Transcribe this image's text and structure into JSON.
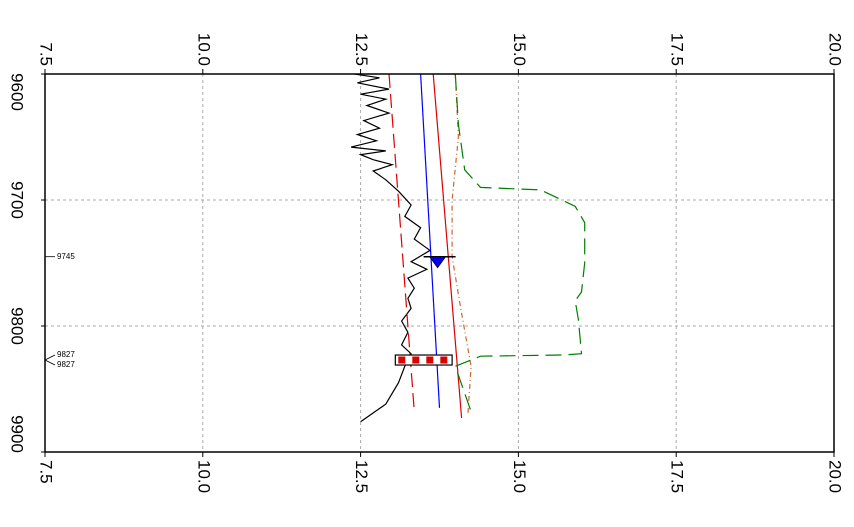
{
  "chart_data": {
    "type": "line",
    "x_axis": {
      "ticks": [
        "7.5",
        "10.0",
        "12.5",
        "15.0",
        "17.5",
        "20.0"
      ],
      "range": [
        7.5,
        20.0
      ]
    },
    "y_axis": {
      "ticks": [
        "9600",
        "9700",
        "9800",
        "9900"
      ],
      "range": [
        9600,
        9900
      ]
    },
    "grid": true,
    "annotations": [
      {
        "label": "9745",
        "depth": 9745
      },
      {
        "label": "9827",
        "depth": 9827
      },
      {
        "label": "9827",
        "depth": 9827
      }
    ],
    "markers": [
      {
        "type": "triangle",
        "x": 13.72,
        "depth": 9745,
        "color": "#0000ff"
      },
      {
        "type": "hatched-bar",
        "x_start": 13.05,
        "x_end": 13.95,
        "depth": 9827,
        "color": "#dd0000"
      }
    ],
    "series": [
      {
        "id": "log-curve",
        "color": "#000000",
        "dash": "",
        "points": [
          [
            12.4,
            9600
          ],
          [
            12.8,
            9603
          ],
          [
            12.45,
            9607
          ],
          [
            12.95,
            9612
          ],
          [
            12.5,
            9616
          ],
          [
            12.9,
            9620
          ],
          [
            12.6,
            9625
          ],
          [
            12.95,
            9631
          ],
          [
            12.55,
            9637
          ],
          [
            12.8,
            9643
          ],
          [
            12.45,
            9648
          ],
          [
            12.75,
            9653
          ],
          [
            12.35,
            9658
          ],
          [
            12.9,
            9661
          ],
          [
            12.5,
            9664
          ],
          [
            12.7,
            9668
          ],
          [
            13.0,
            9672
          ],
          [
            12.7,
            9677
          ],
          [
            12.9,
            9684
          ],
          [
            13.1,
            9693
          ],
          [
            13.3,
            9704
          ],
          [
            13.2,
            9713
          ],
          [
            13.45,
            9722
          ],
          [
            13.35,
            9731
          ],
          [
            13.6,
            9740
          ],
          [
            13.3,
            9749
          ],
          [
            13.55,
            9755
          ],
          [
            13.25,
            9762
          ],
          [
            13.35,
            9770
          ],
          [
            13.25,
            9778
          ],
          [
            13.3,
            9786
          ],
          [
            13.15,
            9796
          ],
          [
            13.25,
            9805
          ],
          [
            13.15,
            9815
          ],
          [
            13.3,
            9822
          ],
          [
            13.2,
            9832
          ],
          [
            13.1,
            9845
          ],
          [
            12.9,
            9862
          ],
          [
            12.5,
            9876
          ]
        ]
      },
      {
        "id": "red-dashed-line",
        "color": "#dd0000",
        "dash": "14 6",
        "points": [
          [
            12.95,
            9600
          ],
          [
            13.35,
            9868
          ]
        ]
      },
      {
        "id": "blue-line",
        "color": "#0000ff",
        "dash": "",
        "points": [
          [
            13.45,
            9600
          ],
          [
            13.75,
            9865
          ]
        ]
      },
      {
        "id": "red-line",
        "color": "#dd0000",
        "dash": "",
        "points": [
          [
            13.65,
            9600
          ],
          [
            14.1,
            9873
          ]
        ]
      },
      {
        "id": "orange-dash-dot-line",
        "color": "#cc6633",
        "dash": "5 3 1 3",
        "points": [
          [
            14.0,
            9600
          ],
          [
            14.05,
            9650
          ],
          [
            13.95,
            9700
          ],
          [
            13.95,
            9745
          ],
          [
            14.1,
            9790
          ],
          [
            14.25,
            9832
          ],
          [
            14.2,
            9870
          ]
        ]
      },
      {
        "id": "green-dashed-line",
        "color": "#008000",
        "dash": "16 7",
        "points": [
          [
            14.0,
            9600
          ],
          [
            14.05,
            9640
          ],
          [
            14.15,
            9676
          ],
          [
            14.4,
            9690
          ],
          [
            15.35,
            9692
          ],
          [
            15.9,
            9705
          ],
          [
            16.05,
            9718
          ],
          [
            16.05,
            9750
          ],
          [
            16.0,
            9773
          ],
          [
            15.9,
            9780
          ],
          [
            15.95,
            9795
          ],
          [
            16.0,
            9822
          ],
          [
            15.7,
            9823
          ],
          [
            14.4,
            9824
          ],
          [
            14.0,
            9832
          ],
          [
            14.25,
            9868
          ]
        ]
      }
    ]
  }
}
